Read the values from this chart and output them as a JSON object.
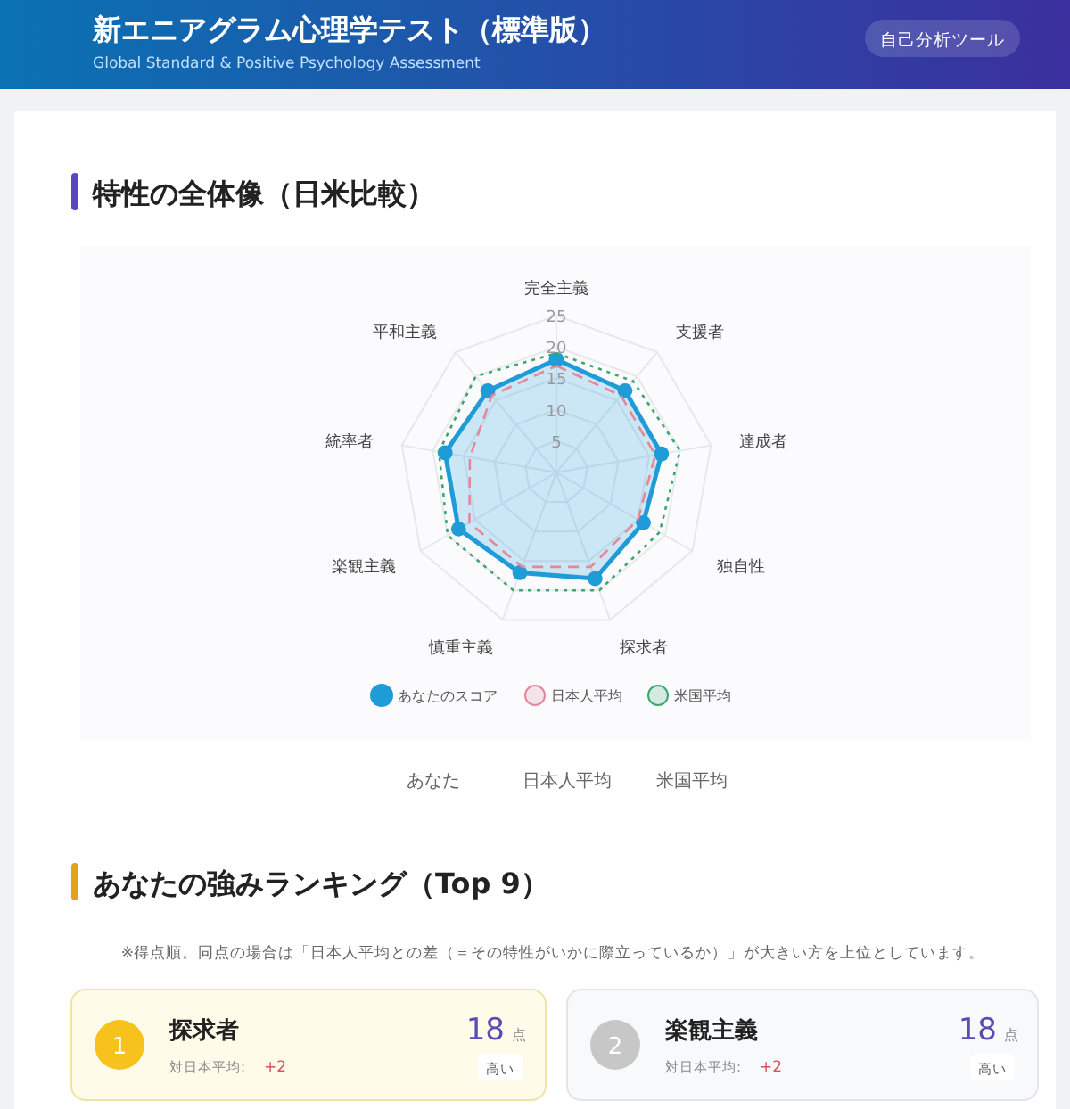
{
  "chart_data": {
    "type": "radar",
    "title": "特性の全体像（日米比較）",
    "categories": [
      "完全主義",
      "支援者",
      "達成者",
      "独自性",
      "探求者",
      "慎重主義",
      "楽観主義",
      "統率者",
      "平和主義"
    ],
    "series": [
      {
        "name": "あなたのスコア",
        "color": "#1f9bd7",
        "values": [
          18,
          17,
          17,
          16,
          18,
          17,
          18,
          18,
          17
        ],
        "marker": "circle",
        "line_style": "solid"
      },
      {
        "name": "日本人平均",
        "color": "#e5879a",
        "values": [
          17,
          16,
          16,
          15,
          16,
          16,
          16,
          14,
          16
        ],
        "marker": "none",
        "line_style": "dashed"
      },
      {
        "name": "米国平均",
        "color": "#3aa76d",
        "values": [
          19,
          19,
          20,
          19,
          20,
          20,
          20,
          19,
          20
        ],
        "marker": "none",
        "line_style": "dotted"
      }
    ],
    "ylim": [
      0,
      25
    ],
    "yticks": [
      5,
      10,
      15,
      20,
      25
    ],
    "grid": true,
    "legend": "bottom",
    "annotations": [
      "新エニアグラム心理学テスト（標準版）",
      "Global Standard & Positive Psychology Assessment",
      "自己分析ツール",
      "あなた",
      "日本人平均",
      "米国平均",
      "あなたの強みランキング（Top 9）",
      "※得点順。同点の場合は「日本人平均との差（＝その特性がいかに際立っているか）」が大きい方を上位としています。",
      "1",
      "探求者",
      "18",
      "点",
      "対日本平均:",
      "+2",
      "高い",
      "2",
      "楽観主義",
      "18",
      "点",
      "対日本平均:",
      "+2",
      "高い"
    ]
  }
}
